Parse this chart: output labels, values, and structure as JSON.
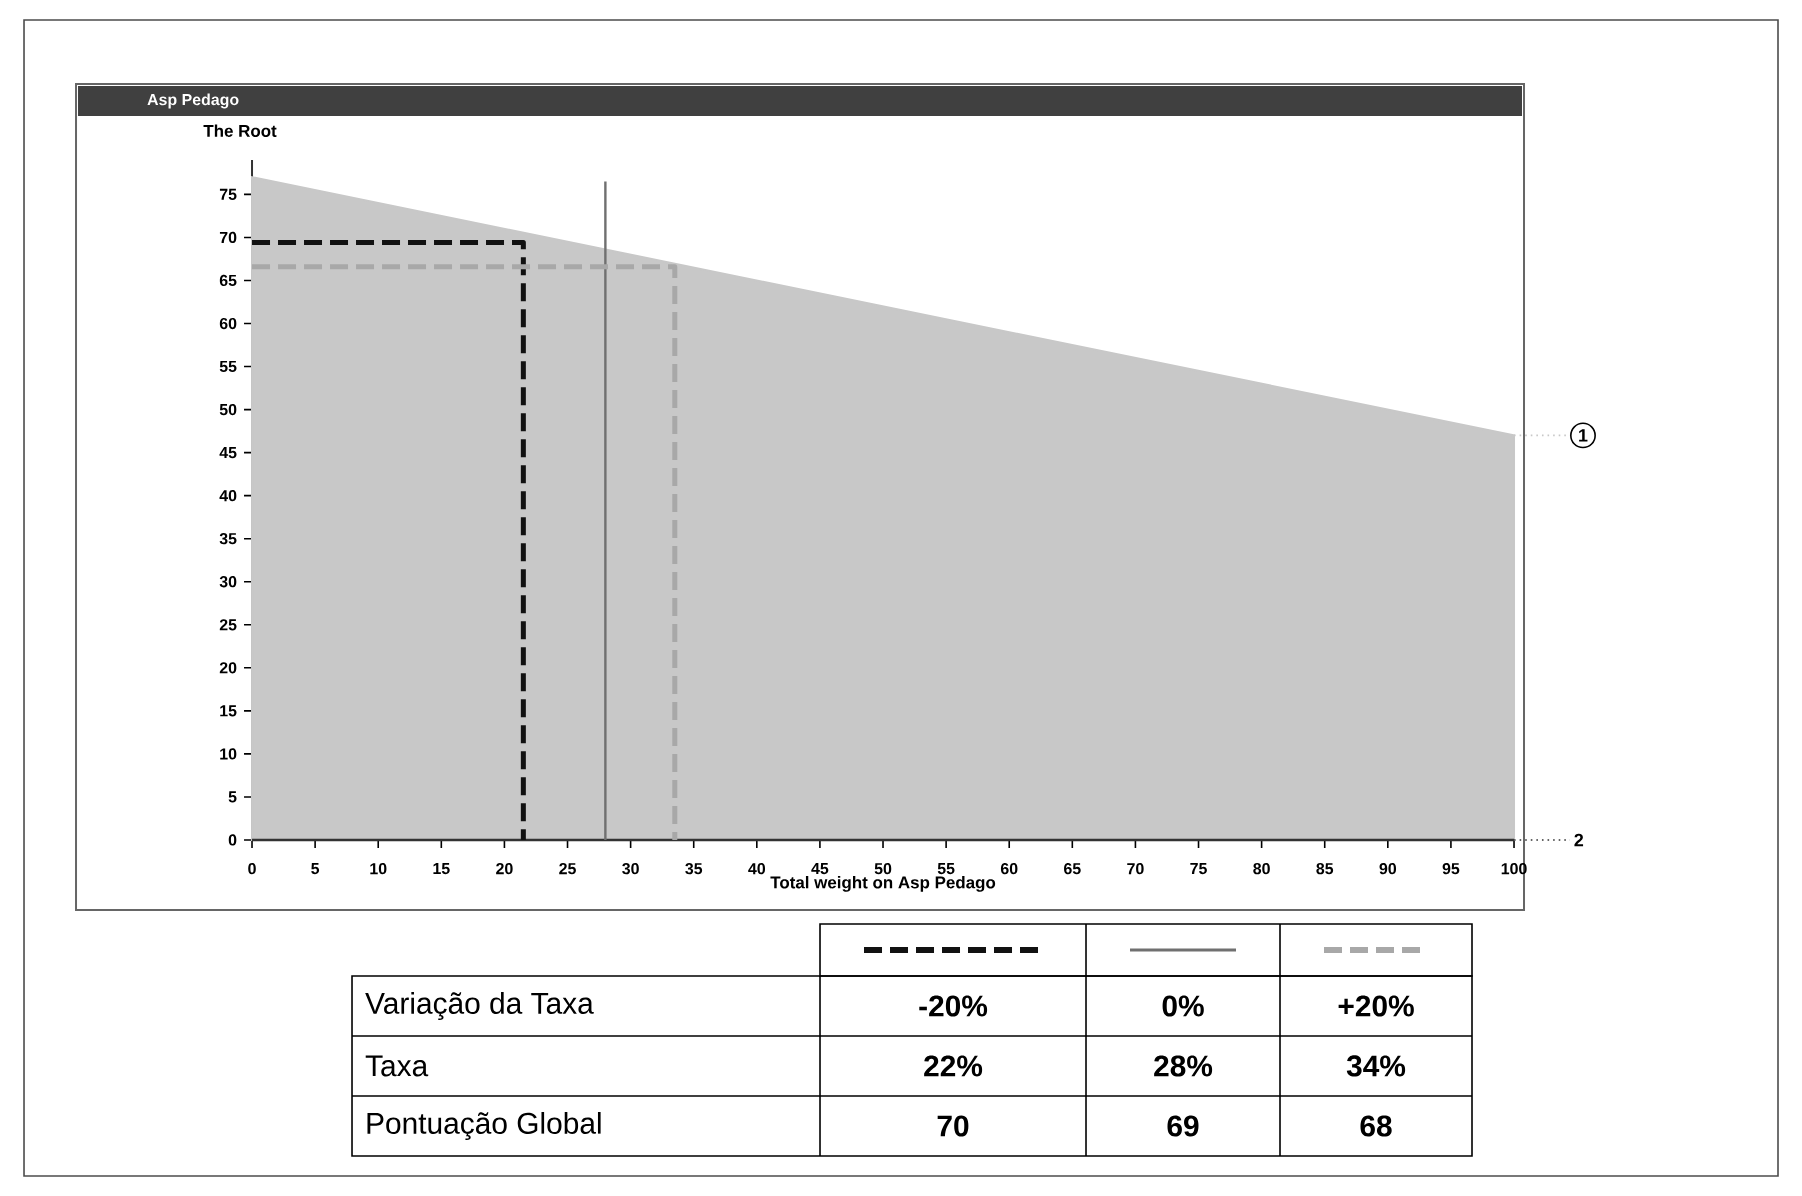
{
  "chart_data": {
    "type": "area",
    "title": "Asp Pedago",
    "xlabel": "Total weight on Asp Pedago",
    "ylabel": "The Root",
    "legend": "right",
    "xlim": [
      0,
      100
    ],
    "ylim": [
      0,
      79
    ],
    "xticks": [
      0,
      5,
      10,
      15,
      20,
      25,
      30,
      35,
      40,
      45,
      50,
      55,
      60,
      65,
      70,
      75,
      80,
      85,
      90,
      95,
      100
    ],
    "yticks": [
      0,
      5,
      10,
      15,
      20,
      25,
      30,
      35,
      40,
      45,
      50,
      55,
      60,
      65,
      70,
      75
    ],
    "series": [
      {
        "name": "1",
        "color": "#c8c8c8",
        "x": [
          0,
          100
        ],
        "values": [
          77,
          47
        ]
      },
      {
        "name": "2",
        "type": "line",
        "color": "#333333",
        "x": [
          0,
          100
        ],
        "values": [
          0,
          0
        ]
      },
      {
        "type": "line",
        "color": "#111111",
        "line_style": "dashed",
        "x": [
          0,
          21.5,
          21.5
        ],
        "values": [
          69.4,
          69.4,
          0
        ]
      },
      {
        "type": "line",
        "color": "#707070",
        "line_style": "solid",
        "x": [
          28,
          28
        ],
        "values": [
          0,
          76.5
        ]
      },
      {
        "type": "line",
        "color": "#a8a8a8",
        "line_style": "dashed",
        "x": [
          0,
          33.5,
          33.5
        ],
        "values": [
          66.6,
          66.6,
          0
        ]
      }
    ],
    "annotations": [
      "Variação da Taxa",
      "-20%",
      "0%",
      "+20%",
      "Taxa",
      "22%",
      "28%",
      "34%",
      "Pontuação Global",
      "70",
      "69",
      "68"
    ]
  }
}
